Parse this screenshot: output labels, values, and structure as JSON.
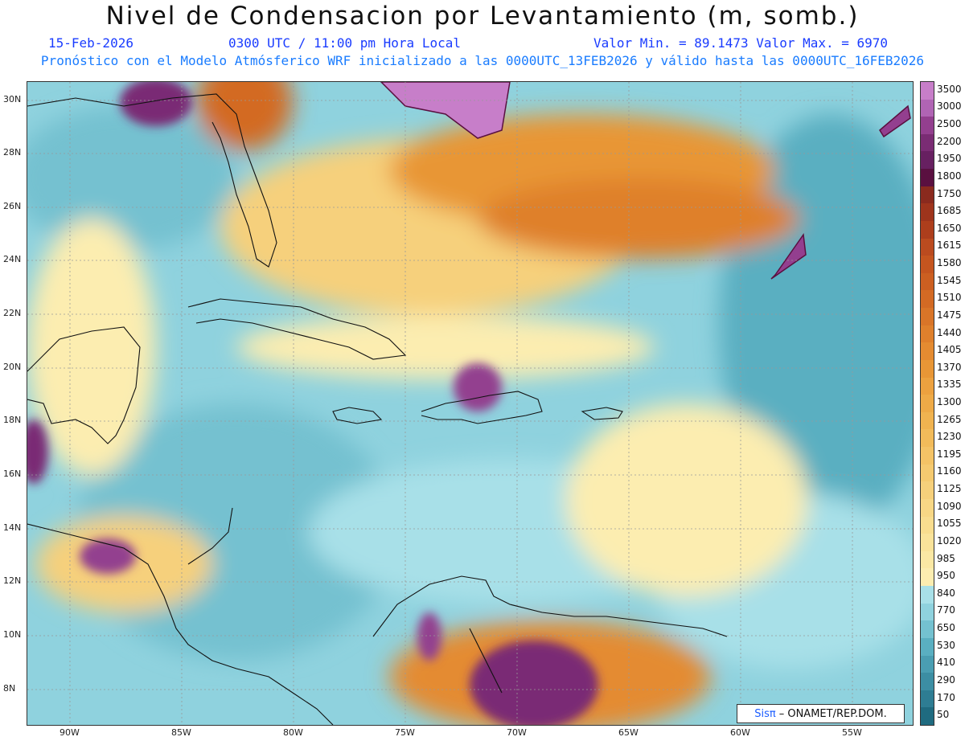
{
  "header": {
    "title": "Nivel de Condensacion por Levantamiento (m, somb.)",
    "date": "15-Feb-2026",
    "time": "0300 UTC / 11:00 pm Hora Local",
    "minmax": "Valor Min. = 89.1473  Valor Max. = 6970",
    "forecast": "Pronóstico con el Modelo Atmósferico WRF inicializado a las 0000UTC_13FEB2026 y válido hasta las  0000UTC_16FEB2026"
  },
  "map": {
    "lon_labels": [
      "90W",
      "85W",
      "80W",
      "75W",
      "70W",
      "65W",
      "60W",
      "55W"
    ],
    "lat_labels": [
      "30N",
      "28N",
      "26N",
      "24N",
      "22N",
      "20N",
      "18N",
      "16N",
      "14N",
      "12N",
      "10N",
      "8N"
    ],
    "credit_brand": "Sisπ",
    "credit_text": "– ONAMET/REP.DOM."
  },
  "colorbar": {
    "labels": [
      "3500",
      "3000",
      "2500",
      "2200",
      "1950",
      "1800",
      "1750",
      "1685",
      "1650",
      "1615",
      "1580",
      "1545",
      "1510",
      "1475",
      "1440",
      "1405",
      "1370",
      "1335",
      "1300",
      "1265",
      "1230",
      "1195",
      "1160",
      "1125",
      "1090",
      "1055",
      "1020",
      "985",
      "950",
      "840",
      "770",
      "650",
      "530",
      "410",
      "290",
      "170",
      "50"
    ],
    "colors": [
      "#c77ec9",
      "#b064b4",
      "#933f8f",
      "#7a2c74",
      "#672061",
      "#5a1040",
      "#8a2a1e",
      "#9e341c",
      "#ad3e1c",
      "#bb4b1f",
      "#c5551f",
      "#cc5f21",
      "#d36a24",
      "#d97528",
      "#df802c",
      "#e48b31",
      "#e89636",
      "#eca13f",
      "#eeaa47",
      "#f0b350",
      "#f2bb5a",
      "#f4c366",
      "#f5ca70",
      "#f6d07b",
      "#f8d785",
      "#f9dd8f",
      "#fae39a",
      "#fbe8a4",
      "#fcedb0",
      "#a8e0e8",
      "#8fd2de",
      "#74c1d0",
      "#5aafc1",
      "#4a9eb2",
      "#3c8ea3",
      "#2e7d93",
      "#1f6b80"
    ]
  }
}
